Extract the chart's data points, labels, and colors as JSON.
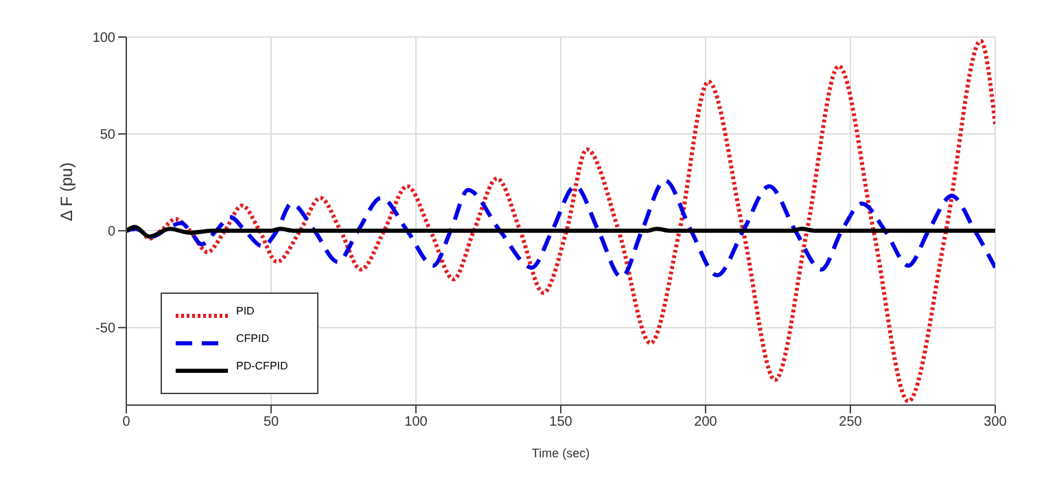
{
  "chart_data": {
    "type": "line",
    "xlabel": "Time (sec)",
    "ylabel": "Δ F (pu)",
    "xlim": [
      0,
      300
    ],
    "xticks": [
      0,
      50,
      100,
      150,
      200,
      250,
      300
    ],
    "ylim": [
      -90,
      100
    ],
    "yticks": [
      -50,
      0,
      50,
      100
    ],
    "grid": true,
    "legend": "bottom left",
    "series": [
      {
        "name": "PID",
        "color": "#e41a1c",
        "line_style": "dotted",
        "x": [
          0,
          4,
          8,
          12,
          17,
          22,
          28,
          34,
          40,
          46,
          52,
          60,
          67,
          74,
          81,
          89,
          97,
          105,
          113,
          120,
          128,
          136,
          144,
          152,
          159,
          170,
          181,
          191,
          201,
          213,
          224,
          235,
          246,
          258,
          270,
          283,
          295,
          300
        ],
        "values": [
          0,
          1,
          -4,
          0,
          6,
          0,
          -11,
          0,
          13,
          0,
          -16,
          0,
          17,
          0,
          -20,
          0,
          23,
          0,
          -25,
          0,
          27,
          0,
          -32,
          0,
          42,
          0,
          -58,
          0,
          77,
          0,
          -77,
          0,
          85,
          0,
          -88,
          0,
          98,
          55
        ]
      },
      {
        "name": "CFPID",
        "color": "#0000e6",
        "line_style": "dashed",
        "x": [
          0,
          3,
          9,
          14,
          19,
          22,
          26,
          31,
          36,
          41,
          47,
          52,
          57,
          65,
          73,
          80,
          88,
          97,
          106,
          112,
          118,
          129,
          140,
          147,
          155,
          163,
          171,
          178,
          186,
          195,
          204,
          213,
          222,
          231,
          240,
          247,
          254,
          262,
          270,
          277,
          285,
          293,
          300
        ],
        "values": [
          0,
          1,
          -3,
          1,
          4,
          0,
          -7,
          0,
          7,
          0,
          -8,
          0,
          14,
          0,
          -16,
          0,
          17,
          0,
          -18,
          0,
          21,
          0,
          -19,
          0,
          23,
          0,
          -24,
          0,
          26,
          0,
          -23,
          0,
          23,
          0,
          -20,
          0,
          14,
          0,
          -18,
          0,
          18,
          0,
          -19
        ]
      },
      {
        "name": "PD-CFPID",
        "color": "#000000",
        "line_style": "solid",
        "x": [
          0,
          3,
          8,
          15,
          22,
          30,
          50,
          53,
          58,
          180,
          183,
          188,
          230,
          233,
          238,
          300
        ],
        "values": [
          0,
          2,
          -3,
          1,
          -1,
          0,
          0,
          1,
          0,
          0,
          1,
          0,
          0,
          1,
          0,
          0
        ]
      }
    ]
  }
}
